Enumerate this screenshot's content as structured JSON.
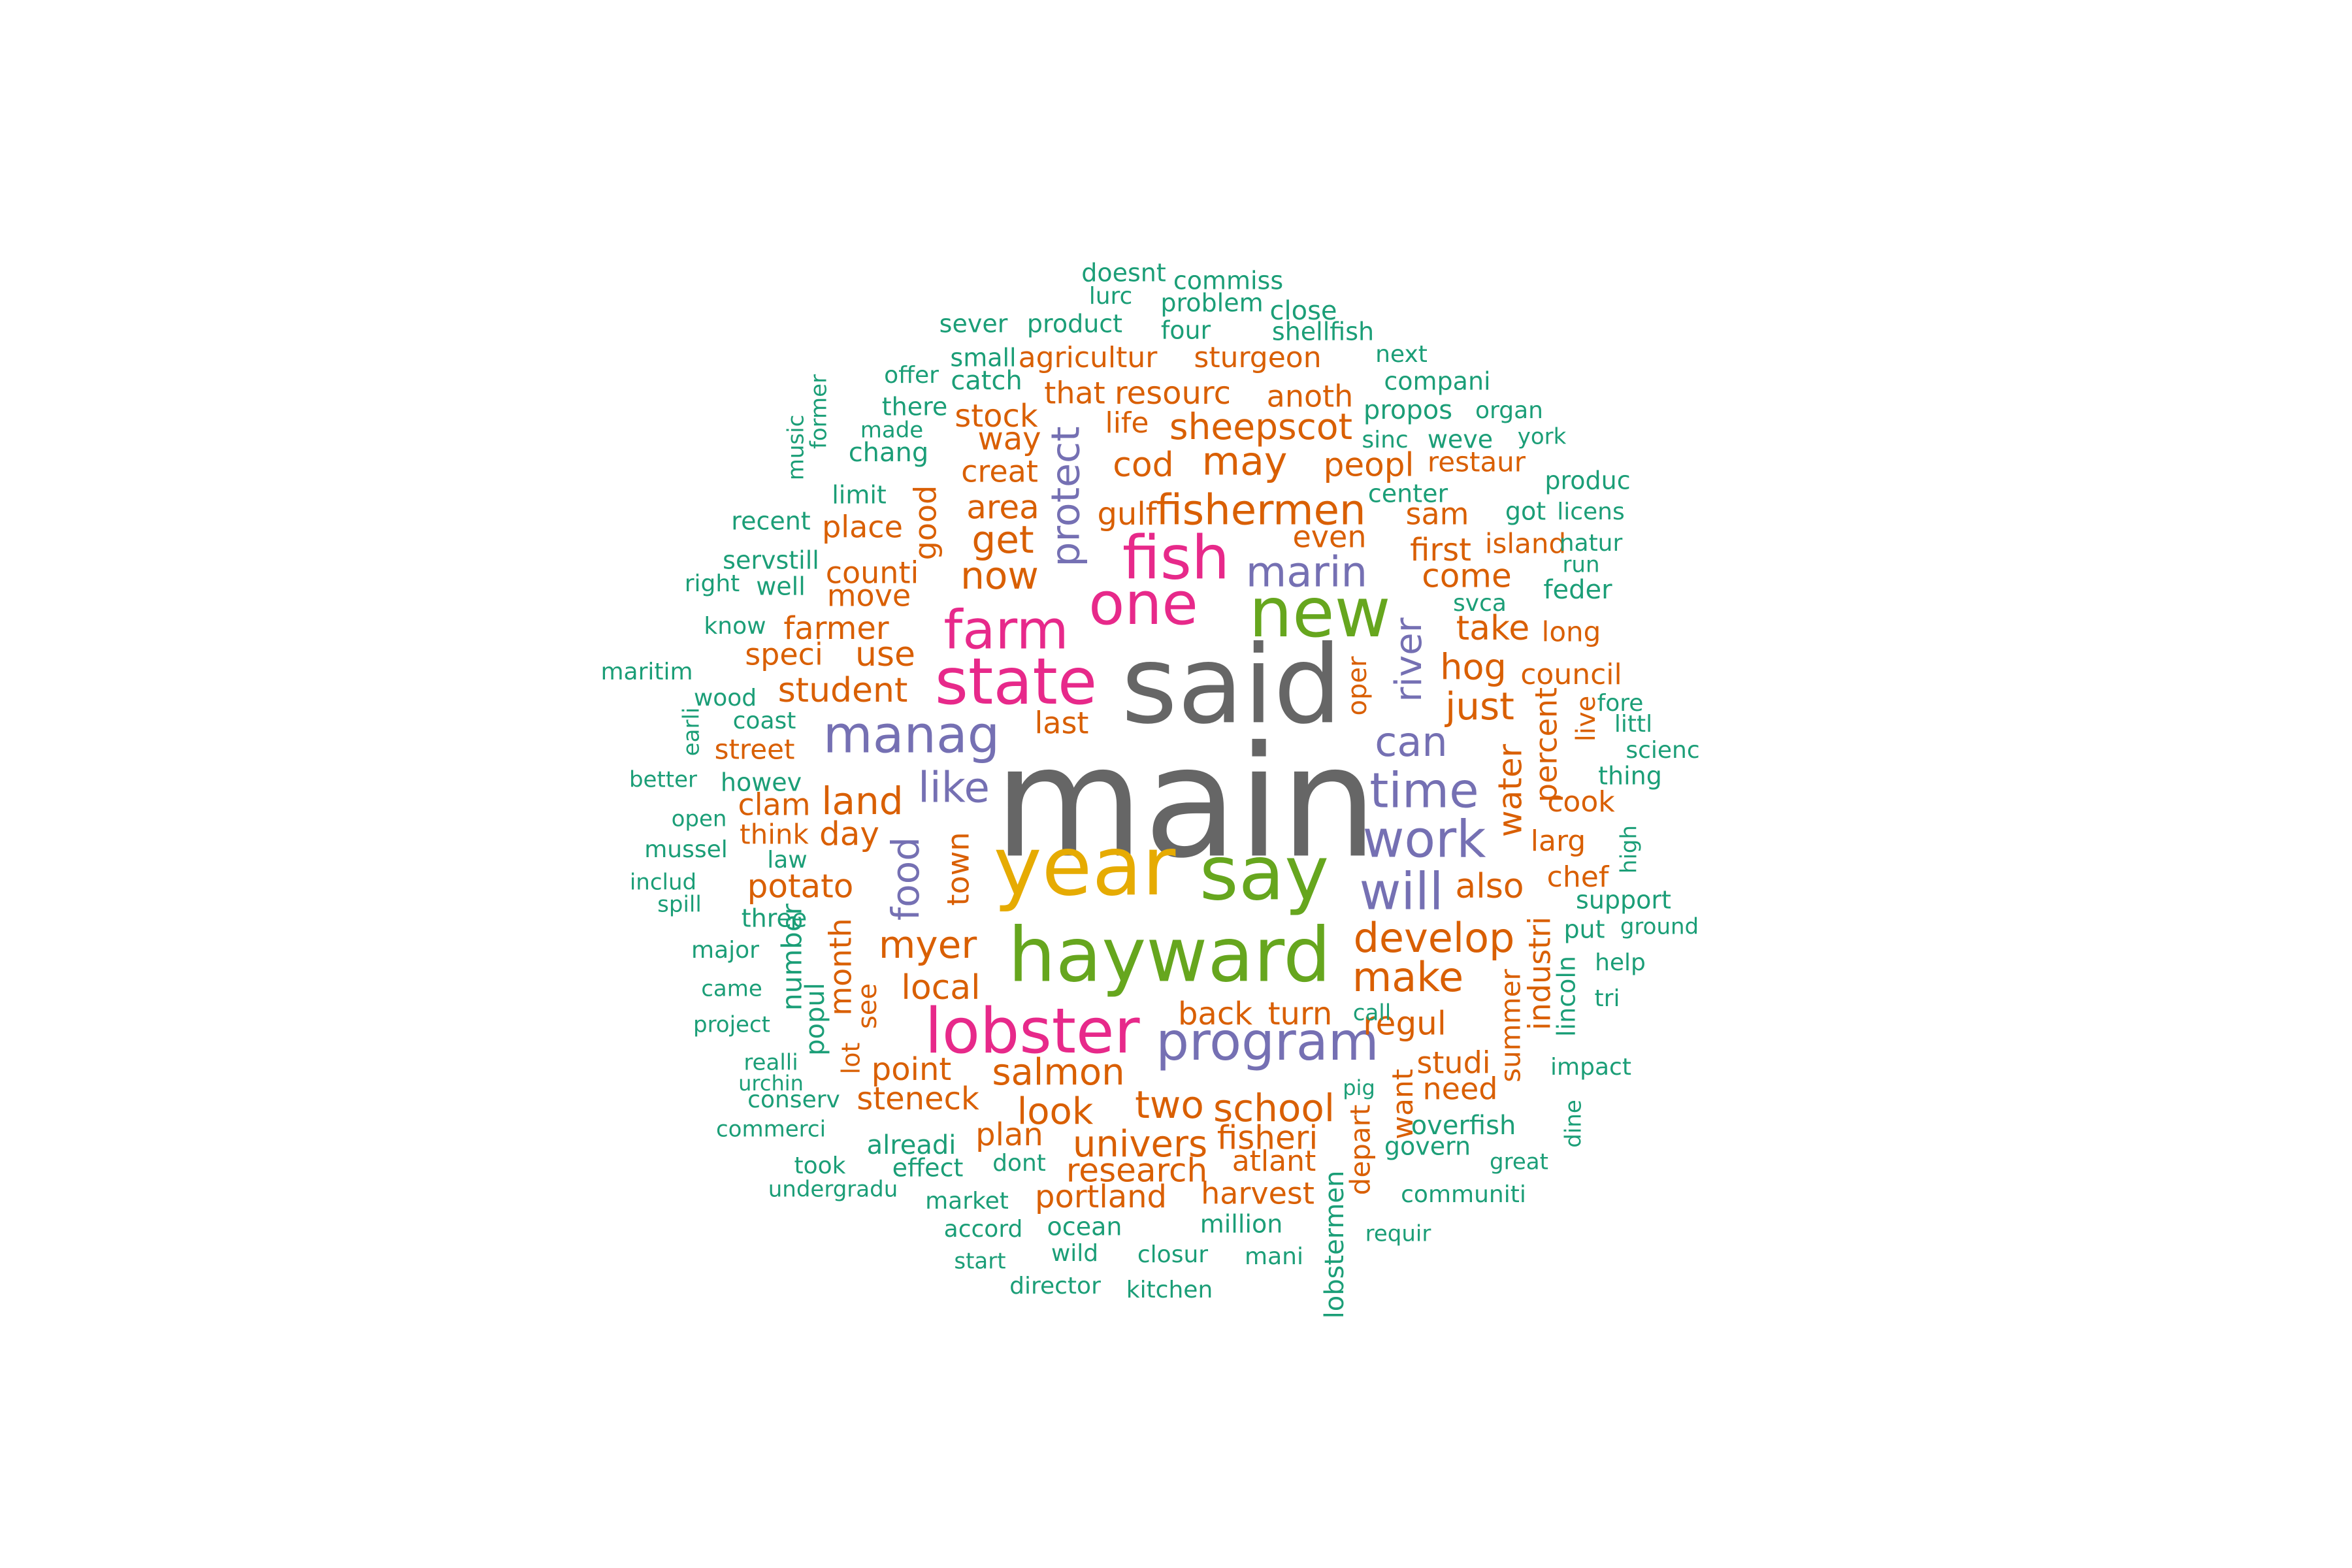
{
  "colors": {
    "gray": "#666666",
    "gold": "#E6AB02",
    "green": "#66A61E",
    "magenta": "#E7298A",
    "purple": "#7570B3",
    "orange": "#D95F02",
    "teal": "#1B9E77"
  },
  "words": [
    {
      "text": "main",
      "color": "gray"
    },
    {
      "text": "said",
      "color": "gray"
    },
    {
      "text": "year",
      "color": "gold"
    },
    {
      "text": "say",
      "color": "green"
    },
    {
      "text": "hayward",
      "color": "green"
    },
    {
      "text": "new",
      "color": "green"
    },
    {
      "text": "lobster",
      "color": "magenta"
    },
    {
      "text": "state",
      "color": "magenta"
    },
    {
      "text": "farm",
      "color": "magenta"
    },
    {
      "text": "fish",
      "color": "magenta"
    },
    {
      "text": "one",
      "color": "magenta"
    },
    {
      "text": "program",
      "color": "purple"
    },
    {
      "text": "manag",
      "color": "purple"
    },
    {
      "text": "work",
      "color": "purple"
    },
    {
      "text": "will",
      "color": "purple"
    },
    {
      "text": "time",
      "color": "purple"
    },
    {
      "text": "marin",
      "color": "purple"
    },
    {
      "text": "can",
      "color": "purple"
    },
    {
      "text": "like",
      "color": "purple"
    },
    {
      "text": "protect",
      "color": "purple"
    },
    {
      "text": "river",
      "color": "purple"
    },
    {
      "text": "food",
      "color": "purple"
    },
    {
      "text": "fishermen",
      "color": "orange"
    },
    {
      "text": "sheepscot",
      "color": "orange"
    },
    {
      "text": "develop",
      "color": "orange"
    },
    {
      "text": "make",
      "color": "orange"
    },
    {
      "text": "myer",
      "color": "orange"
    },
    {
      "text": "salmon",
      "color": "orange"
    },
    {
      "text": "school",
      "color": "orange"
    },
    {
      "text": "univers",
      "color": "orange"
    },
    {
      "text": "research",
      "color": "orange"
    },
    {
      "text": "look",
      "color": "orange"
    },
    {
      "text": "two",
      "color": "orange"
    },
    {
      "text": "fisheri",
      "color": "orange"
    },
    {
      "text": "may",
      "color": "orange"
    },
    {
      "text": "cod",
      "color": "orange"
    },
    {
      "text": "get",
      "color": "orange"
    },
    {
      "text": "now",
      "color": "orange"
    },
    {
      "text": "area",
      "color": "orange"
    },
    {
      "text": "student",
      "color": "orange"
    },
    {
      "text": "land",
      "color": "orange"
    },
    {
      "text": "local",
      "color": "orange"
    },
    {
      "text": "potato",
      "color": "orange"
    },
    {
      "text": "regul",
      "color": "orange"
    },
    {
      "text": "back",
      "color": "orange"
    },
    {
      "text": "turn",
      "color": "orange"
    },
    {
      "text": "hog",
      "color": "orange"
    },
    {
      "text": "just",
      "color": "orange"
    },
    {
      "text": "take",
      "color": "orange"
    },
    {
      "text": "come",
      "color": "orange"
    },
    {
      "text": "first",
      "color": "orange"
    },
    {
      "text": "sam",
      "color": "orange"
    },
    {
      "text": "peopl",
      "color": "orange"
    },
    {
      "text": "even",
      "color": "orange"
    },
    {
      "text": "also",
      "color": "orange"
    },
    {
      "text": "last",
      "color": "orange"
    },
    {
      "text": "use",
      "color": "orange"
    },
    {
      "text": "day",
      "color": "orange"
    },
    {
      "text": "clam",
      "color": "orange"
    },
    {
      "text": "farmer",
      "color": "orange"
    },
    {
      "text": "counti",
      "color": "orange"
    },
    {
      "text": "move",
      "color": "orange"
    },
    {
      "text": "place",
      "color": "orange"
    },
    {
      "text": "speci",
      "color": "orange"
    },
    {
      "text": "point",
      "color": "orange"
    },
    {
      "text": "steneck",
      "color": "orange"
    },
    {
      "text": "plan",
      "color": "orange"
    },
    {
      "text": "portland",
      "color": "orange"
    },
    {
      "text": "harvest",
      "color": "orange"
    },
    {
      "text": "atlant",
      "color": "orange"
    },
    {
      "text": "studi",
      "color": "orange"
    },
    {
      "text": "need",
      "color": "orange"
    },
    {
      "text": "gulf",
      "color": "orange"
    },
    {
      "text": "creat",
      "color": "orange"
    },
    {
      "text": "way",
      "color": "orange"
    },
    {
      "text": "stock",
      "color": "orange"
    },
    {
      "text": "that",
      "color": "orange"
    },
    {
      "text": "resourc",
      "color": "orange"
    },
    {
      "text": "life",
      "color": "orange"
    },
    {
      "text": "anoth",
      "color": "orange"
    },
    {
      "text": "agricultur",
      "color": "orange"
    },
    {
      "text": "sturgeon",
      "color": "orange"
    },
    {
      "text": "restaur",
      "color": "orange"
    },
    {
      "text": "island",
      "color": "orange"
    },
    {
      "text": "long",
      "color": "orange"
    },
    {
      "text": "council",
      "color": "orange"
    },
    {
      "text": "cook",
      "color": "orange"
    },
    {
      "text": "larg",
      "color": "orange"
    },
    {
      "text": "chef",
      "color": "orange"
    },
    {
      "text": "street",
      "color": "orange"
    },
    {
      "text": "think",
      "color": "orange"
    },
    {
      "text": "good",
      "color": "orange"
    },
    {
      "text": "town",
      "color": "orange"
    },
    {
      "text": "month",
      "color": "orange"
    },
    {
      "text": "see",
      "color": "orange"
    },
    {
      "text": "water",
      "color": "orange"
    },
    {
      "text": "percent",
      "color": "orange"
    },
    {
      "text": "live",
      "color": "orange"
    },
    {
      "text": "industri",
      "color": "orange"
    },
    {
      "text": "summer",
      "color": "orange"
    },
    {
      "text": "want",
      "color": "orange"
    },
    {
      "text": "depart",
      "color": "orange"
    },
    {
      "text": "oper",
      "color": "orange"
    },
    {
      "text": "lot",
      "color": "orange"
    },
    {
      "text": "doesnt",
      "color": "teal"
    },
    {
      "text": "commiss",
      "color": "teal"
    },
    {
      "text": "lurc",
      "color": "teal"
    },
    {
      "text": "problem",
      "color": "teal"
    },
    {
      "text": "close",
      "color": "teal"
    },
    {
      "text": "sever",
      "color": "teal"
    },
    {
      "text": "product",
      "color": "teal"
    },
    {
      "text": "four",
      "color": "teal"
    },
    {
      "text": "shellfish",
      "color": "teal"
    },
    {
      "text": "small",
      "color": "teal"
    },
    {
      "text": "next",
      "color": "teal"
    },
    {
      "text": "offer",
      "color": "teal"
    },
    {
      "text": "catch",
      "color": "teal"
    },
    {
      "text": "compani",
      "color": "teal"
    },
    {
      "text": "there",
      "color": "teal"
    },
    {
      "text": "propos",
      "color": "teal"
    },
    {
      "text": "organ",
      "color": "teal"
    },
    {
      "text": "made",
      "color": "teal"
    },
    {
      "text": "sinc",
      "color": "teal"
    },
    {
      "text": "weve",
      "color": "teal"
    },
    {
      "text": "york",
      "color": "teal"
    },
    {
      "text": "chang",
      "color": "teal"
    },
    {
      "text": "produc",
      "color": "teal"
    },
    {
      "text": "limit",
      "color": "teal"
    },
    {
      "text": "center",
      "color": "teal"
    },
    {
      "text": "recent",
      "color": "teal"
    },
    {
      "text": "got",
      "color": "teal"
    },
    {
      "text": "licens",
      "color": "teal"
    },
    {
      "text": "natur",
      "color": "teal"
    },
    {
      "text": "servstill",
      "color": "teal"
    },
    {
      "text": "run",
      "color": "teal"
    },
    {
      "text": "right",
      "color": "teal"
    },
    {
      "text": "well",
      "color": "teal"
    },
    {
      "text": "feder",
      "color": "teal"
    },
    {
      "text": "svca",
      "color": "teal"
    },
    {
      "text": "know",
      "color": "teal"
    },
    {
      "text": "maritim",
      "color": "teal"
    },
    {
      "text": "wood",
      "color": "teal"
    },
    {
      "text": "fore",
      "color": "teal"
    },
    {
      "text": "coast",
      "color": "teal"
    },
    {
      "text": "littl",
      "color": "teal"
    },
    {
      "text": "scienc",
      "color": "teal"
    },
    {
      "text": "better",
      "color": "teal"
    },
    {
      "text": "howev",
      "color": "teal"
    },
    {
      "text": "thing",
      "color": "teal"
    },
    {
      "text": "open",
      "color": "teal"
    },
    {
      "text": "mussel",
      "color": "teal"
    },
    {
      "text": "law",
      "color": "teal"
    },
    {
      "text": "includ",
      "color": "teal"
    },
    {
      "text": "spill",
      "color": "teal"
    },
    {
      "text": "support",
      "color": "teal"
    },
    {
      "text": "three",
      "color": "teal"
    },
    {
      "text": "put",
      "color": "teal"
    },
    {
      "text": "ground",
      "color": "teal"
    },
    {
      "text": "major",
      "color": "teal"
    },
    {
      "text": "help",
      "color": "teal"
    },
    {
      "text": "came",
      "color": "teal"
    },
    {
      "text": "tri",
      "color": "teal"
    },
    {
      "text": "call",
      "color": "teal"
    },
    {
      "text": "project",
      "color": "teal"
    },
    {
      "text": "realli",
      "color": "teal"
    },
    {
      "text": "impact",
      "color": "teal"
    },
    {
      "text": "urchin",
      "color": "teal"
    },
    {
      "text": "pig",
      "color": "teal"
    },
    {
      "text": "conserv",
      "color": "teal"
    },
    {
      "text": "commerci",
      "color": "teal"
    },
    {
      "text": "alreadi",
      "color": "teal"
    },
    {
      "text": "overfish",
      "color": "teal"
    },
    {
      "text": "govern",
      "color": "teal"
    },
    {
      "text": "took",
      "color": "teal"
    },
    {
      "text": "effect",
      "color": "teal"
    },
    {
      "text": "dont",
      "color": "teal"
    },
    {
      "text": "great",
      "color": "teal"
    },
    {
      "text": "undergradu",
      "color": "teal"
    },
    {
      "text": "market",
      "color": "teal"
    },
    {
      "text": "communiti",
      "color": "teal"
    },
    {
      "text": "accord",
      "color": "teal"
    },
    {
      "text": "ocean",
      "color": "teal"
    },
    {
      "text": "million",
      "color": "teal"
    },
    {
      "text": "requir",
      "color": "teal"
    },
    {
      "text": "wild",
      "color": "teal"
    },
    {
      "text": "closur",
      "color": "teal"
    },
    {
      "text": "mani",
      "color": "teal"
    },
    {
      "text": "start",
      "color": "teal"
    },
    {
      "text": "director",
      "color": "teal"
    },
    {
      "text": "kitchen",
      "color": "teal"
    },
    {
      "text": "former",
      "color": "teal"
    },
    {
      "text": "music",
      "color": "teal"
    },
    {
      "text": "earli",
      "color": "teal"
    },
    {
      "text": "number",
      "color": "teal"
    },
    {
      "text": "popul",
      "color": "teal"
    },
    {
      "text": "lobstermen",
      "color": "teal"
    },
    {
      "text": "high",
      "color": "teal"
    },
    {
      "text": "lincoln",
      "color": "teal"
    },
    {
      "text": "dine",
      "color": "teal"
    }
  ]
}
